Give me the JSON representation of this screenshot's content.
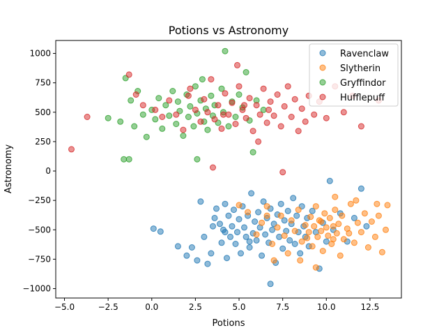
{
  "chart_data": {
    "type": "scatter",
    "title": "Potions vs Astronomy",
    "xlabel": "Potions",
    "ylabel": "Astronomy",
    "xlim": [
      -5.5,
      14.3
    ],
    "ylim": [
      -1080,
      1110
    ],
    "xticks": [
      -5.0,
      -2.5,
      0.0,
      2.5,
      5.0,
      7.5,
      10.0,
      12.5
    ],
    "xtick_labels": [
      "−5.0",
      "−2.5",
      "0.0",
      "2.5",
      "5.0",
      "7.5",
      "10.0",
      "12.5"
    ],
    "yticks": [
      -1000,
      -750,
      -500,
      -250,
      0,
      250,
      500,
      750,
      1000
    ],
    "ytick_labels": [
      "−1000",
      "−750",
      "−500",
      "−250",
      "0",
      "250",
      "500",
      "750",
      "1000"
    ],
    "grid": false,
    "legend_position": "top-right",
    "marker_alpha": 0.5,
    "series": [
      {
        "name": "Ravenclaw",
        "color": "#1f77b4",
        "points": [
          [
            0.1,
            -490
          ],
          [
            0.5,
            -515
          ],
          [
            1.5,
            -640
          ],
          [
            2.0,
            -720
          ],
          [
            2.3,
            -650
          ],
          [
            2.6,
            -760
          ],
          [
            2.8,
            -260
          ],
          [
            3.0,
            -560
          ],
          [
            3.2,
            -790
          ],
          [
            3.4,
            -700
          ],
          [
            3.6,
            -400
          ],
          [
            3.7,
            -320
          ],
          [
            3.9,
            -450
          ],
          [
            4.0,
            -610
          ],
          [
            4.1,
            -500
          ],
          [
            4.2,
            -280
          ],
          [
            4.3,
            -740
          ],
          [
            4.4,
            -380
          ],
          [
            4.5,
            -560
          ],
          [
            4.6,
            -470
          ],
          [
            4.7,
            -330
          ],
          [
            4.8,
            -620
          ],
          [
            4.9,
            -520
          ],
          [
            5.0,
            -410
          ],
          [
            5.1,
            -700
          ],
          [
            5.2,
            -300
          ],
          [
            5.3,
            -480
          ],
          [
            5.4,
            -560
          ],
          [
            5.5,
            -380
          ],
          [
            5.6,
            -650
          ],
          [
            5.7,
            -190
          ],
          [
            5.8,
            -530
          ],
          [
            5.9,
            -430
          ],
          [
            6.0,
            -590
          ],
          [
            6.1,
            -350
          ],
          [
            6.2,
            -480
          ],
          [
            6.3,
            -720
          ],
          [
            6.4,
            -260
          ],
          [
            6.5,
            -540
          ],
          [
            6.6,
            -400
          ],
          [
            6.7,
            -610
          ],
          [
            6.8,
            -320
          ],
          [
            6.9,
            -500
          ],
          [
            7.0,
            -450
          ],
          [
            7.1,
            -780
          ],
          [
            7.2,
            -370
          ],
          [
            7.3,
            -560
          ],
          [
            7.4,
            -280
          ],
          [
            7.5,
            -660
          ],
          [
            7.6,
            -420
          ],
          [
            7.7,
            -510
          ],
          [
            7.8,
            -340
          ],
          [
            7.9,
            -590
          ],
          [
            8.0,
            -450
          ],
          [
            8.1,
            -230
          ],
          [
            8.2,
            -620
          ],
          [
            8.3,
            -380
          ],
          [
            8.4,
            -520
          ],
          [
            8.5,
            -700
          ],
          [
            8.6,
            -300
          ],
          [
            8.7,
            -470
          ],
          [
            8.8,
            -560
          ],
          [
            8.9,
            -400
          ],
          [
            9.0,
            -640
          ],
          [
            9.2,
            -340
          ],
          [
            9.4,
            -520
          ],
          [
            9.6,
            -830
          ],
          [
            9.8,
            -440
          ],
          [
            10.0,
            -600
          ],
          [
            10.2,
            -85
          ],
          [
            10.4,
            -500
          ],
          [
            10.8,
            -360
          ],
          [
            11.2,
            -600
          ],
          [
            11.6,
            -400
          ],
          [
            12.0,
            -150
          ],
          [
            6.8,
            -960
          ],
          [
            12.3,
            -470
          ],
          [
            5.6,
            -600
          ],
          [
            4.2,
            -520
          ],
          [
            3.5,
            -470
          ]
        ]
      },
      {
        "name": "Slytherin",
        "color": "#ff7f0e",
        "points": [
          [
            5.0,
            -290
          ],
          [
            5.5,
            -350
          ],
          [
            6.0,
            -540
          ],
          [
            6.3,
            -440
          ],
          [
            6.6,
            -300
          ],
          [
            6.9,
            -620
          ],
          [
            7.2,
            -480
          ],
          [
            7.4,
            -380
          ],
          [
            7.6,
            -550
          ],
          [
            7.8,
            -700
          ],
          [
            8.0,
            -420
          ],
          [
            8.2,
            -510
          ],
          [
            8.4,
            -330
          ],
          [
            8.6,
            -600
          ],
          [
            8.8,
            -460
          ],
          [
            9.0,
            -520
          ],
          [
            9.1,
            -390
          ],
          [
            9.2,
            -640
          ],
          [
            9.3,
            -470
          ],
          [
            9.4,
            -300
          ],
          [
            9.5,
            -560
          ],
          [
            9.6,
            -420
          ],
          [
            9.7,
            -510
          ],
          [
            9.8,
            -680
          ],
          [
            9.9,
            -360
          ],
          [
            10.0,
            -480
          ],
          [
            10.1,
            -550
          ],
          [
            10.2,
            -400
          ],
          [
            10.3,
            -620
          ],
          [
            10.4,
            -470
          ],
          [
            10.5,
            -330
          ],
          [
            10.6,
            -530
          ],
          [
            10.7,
            -450
          ],
          [
            10.8,
            -720
          ],
          [
            10.9,
            -380
          ],
          [
            11.0,
            -580
          ],
          [
            11.2,
            -490
          ],
          [
            11.4,
            -280
          ],
          [
            11.6,
            -610
          ],
          [
            11.8,
            -440
          ],
          [
            12.0,
            -520
          ],
          [
            12.2,
            -360
          ],
          [
            12.4,
            -650
          ],
          [
            12.6,
            -430
          ],
          [
            12.8,
            -560
          ],
          [
            13.0,
            -380
          ],
          [
            13.2,
            -690
          ],
          [
            13.4,
            -500
          ],
          [
            13.5,
            -290
          ],
          [
            8.5,
            -760
          ],
          [
            7.0,
            -760
          ],
          [
            6.6,
            -380
          ],
          [
            9.4,
            -820
          ],
          [
            10.5,
            -220
          ],
          [
            11.7,
            -250
          ],
          [
            12.9,
            -280
          ],
          [
            8.9,
            -570
          ],
          [
            9.7,
            -430
          ],
          [
            10.4,
            -580
          ],
          [
            11.3,
            -530
          ]
        ]
      },
      {
        "name": "Gryffindor",
        "color": "#2ca02c",
        "points": [
          [
            -2.5,
            450
          ],
          [
            -1.8,
            420
          ],
          [
            -1.5,
            790
          ],
          [
            -1.2,
            600
          ],
          [
            -1.0,
            380
          ],
          [
            -0.8,
            680
          ],
          [
            -0.5,
            480
          ],
          [
            -0.3,
            290
          ],
          [
            0.0,
            520
          ],
          [
            0.2,
            440
          ],
          [
            0.4,
            620
          ],
          [
            0.6,
            360
          ],
          [
            0.8,
            560
          ],
          [
            1.0,
            470
          ],
          [
            1.2,
            680
          ],
          [
            1.4,
            400
          ],
          [
            1.5,
            590
          ],
          [
            1.6,
            510
          ],
          [
            1.8,
            300
          ],
          [
            2.0,
            650
          ],
          [
            2.1,
            460
          ],
          [
            2.2,
            550
          ],
          [
            2.4,
            380
          ],
          [
            2.5,
            720
          ],
          [
            2.6,
            490
          ],
          [
            2.8,
            600
          ],
          [
            3.0,
            420
          ],
          [
            3.1,
            530
          ],
          [
            3.2,
            350
          ],
          [
            3.4,
            640
          ],
          [
            3.5,
            470
          ],
          [
            3.6,
            560
          ],
          [
            3.8,
            410
          ],
          [
            4.0,
            700
          ],
          [
            4.1,
            500
          ],
          [
            4.2,
            1020
          ],
          [
            4.4,
            380
          ],
          [
            4.6,
            590
          ],
          [
            4.8,
            460
          ],
          [
            5.0,
            650
          ],
          [
            5.2,
            540
          ],
          [
            5.4,
            840
          ],
          [
            5.6,
            430
          ],
          [
            6.0,
            600
          ],
          [
            6.4,
            520
          ],
          [
            2.6,
            100
          ],
          [
            -1.6,
            100
          ],
          [
            -1.3,
            100
          ],
          [
            5.8,
            160
          ],
          [
            2.9,
            780
          ]
        ]
      },
      {
        "name": "Hufflepuff",
        "color": "#d62728",
        "points": [
          [
            -4.6,
            185
          ],
          [
            -3.7,
            460
          ],
          [
            -1.3,
            820
          ],
          [
            -0.9,
            650
          ],
          [
            -0.5,
            560
          ],
          [
            0.2,
            520
          ],
          [
            0.6,
            460
          ],
          [
            1.0,
            600
          ],
          [
            1.4,
            480
          ],
          [
            1.8,
            350
          ],
          [
            2.2,
            700
          ],
          [
            2.5,
            520
          ],
          [
            2.8,
            420
          ],
          [
            3.0,
            610
          ],
          [
            3.2,
            500
          ],
          [
            3.4,
            780
          ],
          [
            3.6,
            440
          ],
          [
            3.8,
            560
          ],
          [
            4.0,
            360
          ],
          [
            4.2,
            660
          ],
          [
            4.4,
            480
          ],
          [
            4.6,
            580
          ],
          [
            4.8,
            400
          ],
          [
            5.0,
            720
          ],
          [
            5.2,
            520
          ],
          [
            5.4,
            450
          ],
          [
            5.6,
            620
          ],
          [
            5.8,
            340
          ],
          [
            6.0,
            560
          ],
          [
            6.2,
            480
          ],
          [
            6.4,
            700
          ],
          [
            6.6,
            410
          ],
          [
            6.8,
            590
          ],
          [
            7.0,
            470
          ],
          [
            7.2,
            650
          ],
          [
            7.4,
            380
          ],
          [
            7.6,
            550
          ],
          [
            7.8,
            720
          ],
          [
            8.0,
            460
          ],
          [
            8.2,
            610
          ],
          [
            8.4,
            340
          ],
          [
            8.6,
            530
          ],
          [
            8.8,
            420
          ],
          [
            9.0,
            640
          ],
          [
            9.3,
            480
          ],
          [
            9.6,
            590
          ],
          [
            10.0,
            450
          ],
          [
            10.5,
            720
          ],
          [
            11.0,
            500
          ],
          [
            11.5,
            640
          ],
          [
            7.5,
            -10
          ],
          [
            3.5,
            30
          ],
          [
            12.0,
            380
          ],
          [
            13.0,
            600
          ],
          [
            4.9,
            900
          ],
          [
            6.1,
            250
          ],
          [
            2.1,
            640
          ],
          [
            5.3,
            560
          ],
          [
            4.1,
            480
          ],
          [
            6.7,
            520
          ]
        ]
      }
    ]
  }
}
